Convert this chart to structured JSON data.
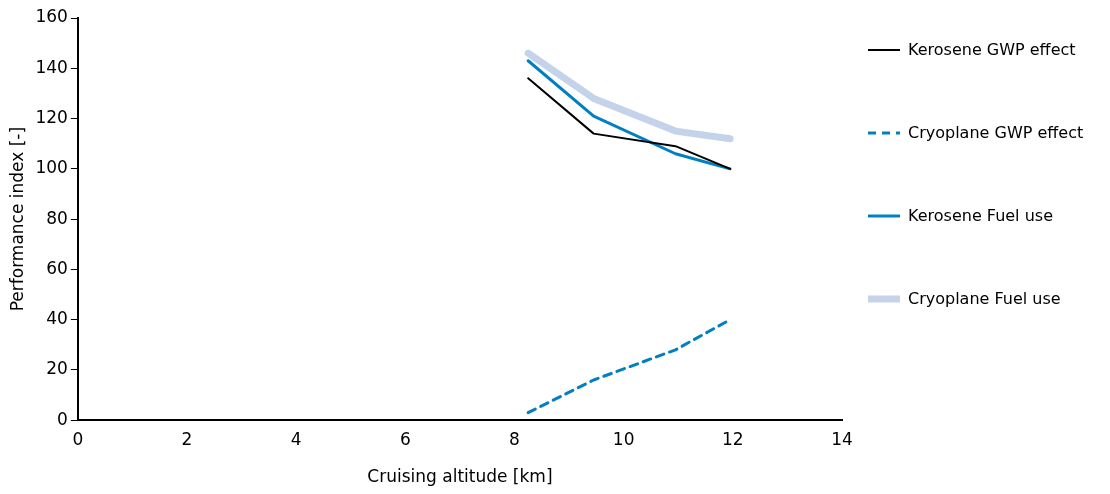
{
  "chart_data": {
    "type": "line",
    "xlabel": "Cruising altitude [km]",
    "ylabel": "Performance index [-]",
    "x": [
      8.25,
      9.45,
      10.95,
      11.95
    ],
    "xlim": [
      0,
      14
    ],
    "xticks": [
      0,
      2,
      4,
      6,
      8,
      10,
      12,
      14
    ],
    "ylim": [
      0,
      160
    ],
    "yticks": [
      0,
      20,
      40,
      60,
      80,
      100,
      120,
      140,
      160
    ],
    "grid": false,
    "legend": "right",
    "marker": "none",
    "series": [
      {
        "name": "Kerosene GWP effect",
        "color": "#000000",
        "values": [
          136,
          114,
          109,
          100
        ]
      },
      {
        "name": "Cryoplane GWP effect",
        "color": "#0080c0",
        "values": [
          3,
          16,
          28,
          40
        ],
        "line_style": "dashed"
      },
      {
        "name": "Kerosene Fuel use",
        "color": "#0080c0",
        "values": [
          143,
          121,
          106,
          100
        ]
      },
      {
        "name": "Cryoplane Fuel use",
        "color": "#c5d3ea",
        "values": [
          146,
          128,
          115,
          112
        ]
      }
    ]
  }
}
